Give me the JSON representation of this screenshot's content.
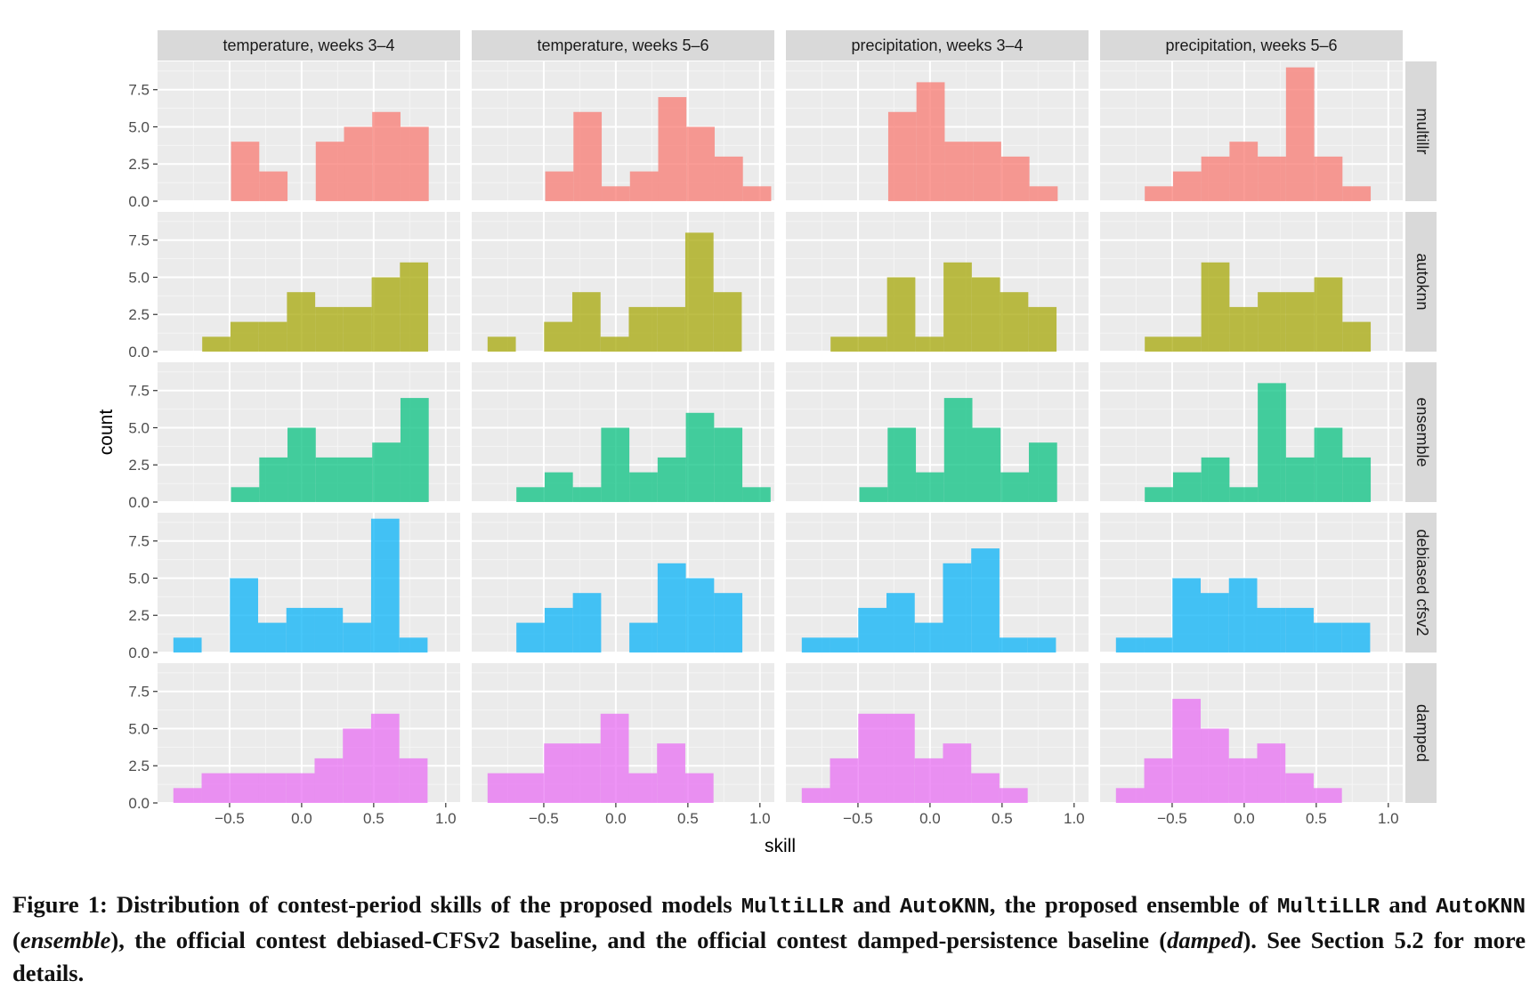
{
  "chart_data": {
    "type": "histogram",
    "layout": "facet-grid",
    "xlabel": "skill",
    "ylabel": "count",
    "xlim": [
      -1.0,
      1.1
    ],
    "ylim": [
      0,
      9.4
    ],
    "x_ticks": [
      -0.5,
      0.0,
      0.5,
      1.0
    ],
    "x_tick_labels": [
      "−0.5",
      "0.0",
      "0.5",
      "1.0"
    ],
    "y_ticks": [
      0.0,
      2.5,
      5.0,
      7.5
    ],
    "y_tick_labels": [
      "0.0",
      "2.5",
      "5.0",
      "7.5"
    ],
    "bin_width": 0.196,
    "grid": true,
    "columns": [
      "temperature, weeks 3–4",
      "temperature, weeks 5–6",
      "precipitation, weeks 3–4",
      "precipitation, weeks 5–6"
    ],
    "rows": [
      {
        "name": "multillr",
        "color": "#F8766D",
        "panels": [
          {
            "bin_start": -0.49,
            "counts": [
              4,
              2,
              0,
              4,
              5,
              6,
              5
            ]
          },
          {
            "bin_start": -0.49,
            "counts": [
              2,
              6,
              1,
              2,
              7,
              5,
              3,
              1
            ]
          },
          {
            "bin_start": -0.29,
            "counts": [
              6,
              8,
              4,
              4,
              3,
              1
            ]
          },
          {
            "bin_start": -0.69,
            "counts": [
              1,
              2,
              3,
              4,
              3,
              9,
              3,
              1
            ]
          }
        ]
      },
      {
        "name": "autoknn",
        "color": "#A3A500",
        "panels": [
          {
            "bin_start": -0.69,
            "counts": [
              1,
              2,
              2,
              4,
              3,
              3,
              5,
              6
            ]
          },
          {
            "bin_start": -0.89,
            "counts": [
              1,
              0,
              2,
              4,
              1,
              3,
              3,
              8,
              4
            ]
          },
          {
            "bin_start": -0.69,
            "counts": [
              1,
              1,
              5,
              1,
              6,
              5,
              4,
              3
            ]
          },
          {
            "bin_start": -0.69,
            "counts": [
              1,
              1,
              6,
              3,
              4,
              4,
              5,
              2
            ]
          }
        ]
      },
      {
        "name": "ensemble",
        "color": "#00BF7D",
        "panels": [
          {
            "bin_start": -0.49,
            "counts": [
              1,
              3,
              5,
              3,
              3,
              4,
              7
            ]
          },
          {
            "bin_start": -0.69,
            "counts": [
              1,
              2,
              1,
              5,
              2,
              3,
              6,
              5,
              1
            ]
          },
          {
            "bin_start": -0.49,
            "counts": [
              1,
              5,
              2,
              7,
              5,
              2,
              4
            ]
          },
          {
            "bin_start": -0.69,
            "counts": [
              1,
              2,
              3,
              1,
              8,
              3,
              5,
              3
            ]
          }
        ]
      },
      {
        "name": "debiased cfsv2",
        "color": "#00B0F6",
        "panels": [
          {
            "bin_start": -0.89,
            "counts": [
              1,
              0,
              5,
              2,
              3,
              3,
              2,
              9,
              1
            ]
          },
          {
            "bin_start": -0.69,
            "counts": [
              2,
              3,
              4,
              0,
              2,
              6,
              5,
              4
            ]
          },
          {
            "bin_start": -0.89,
            "counts": [
              1,
              1,
              3,
              4,
              2,
              6,
              7,
              1,
              1
            ]
          },
          {
            "bin_start": -0.89,
            "counts": [
              1,
              1,
              5,
              4,
              5,
              3,
              3,
              2,
              2
            ]
          }
        ]
      },
      {
        "name": "damped",
        "color": "#E76BF3",
        "panels": [
          {
            "bin_start": -0.89,
            "counts": [
              1,
              2,
              2,
              2,
              2,
              3,
              5,
              6,
              3
            ]
          },
          {
            "bin_start": -0.89,
            "counts": [
              2,
              2,
              4,
              4,
              6,
              2,
              4,
              2
            ]
          },
          {
            "bin_start": -0.89,
            "counts": [
              1,
              3,
              6,
              6,
              3,
              4,
              2,
              1
            ]
          },
          {
            "bin_start": -0.89,
            "counts": [
              1,
              3,
              7,
              5,
              3,
              4,
              2,
              1
            ]
          }
        ]
      }
    ]
  },
  "caption": {
    "parts": [
      {
        "text": "Figure 1: Distribution of contest-period skills of the proposed models ",
        "style": "plain"
      },
      {
        "text": "MultiLLR",
        "style": "mono"
      },
      {
        "text": " and ",
        "style": "plain"
      },
      {
        "text": "AutoKNN",
        "style": "mono"
      },
      {
        "text": ", the proposed ensemble of ",
        "style": "plain"
      },
      {
        "text": "MultiLLR",
        "style": "mono"
      },
      {
        "text": " and ",
        "style": "plain"
      },
      {
        "text": "AutoKNN",
        "style": "mono"
      },
      {
        "text": " (",
        "style": "plain"
      },
      {
        "text": "ensemble",
        "style": "em"
      },
      {
        "text": "), the official contest debiased-CFSv2 baseline, and the official contest damped-persistence baseline (",
        "style": "plain"
      },
      {
        "text": "damped",
        "style": "em"
      },
      {
        "text": "). See Section 5.2 for more details.",
        "style": "plain"
      }
    ]
  }
}
